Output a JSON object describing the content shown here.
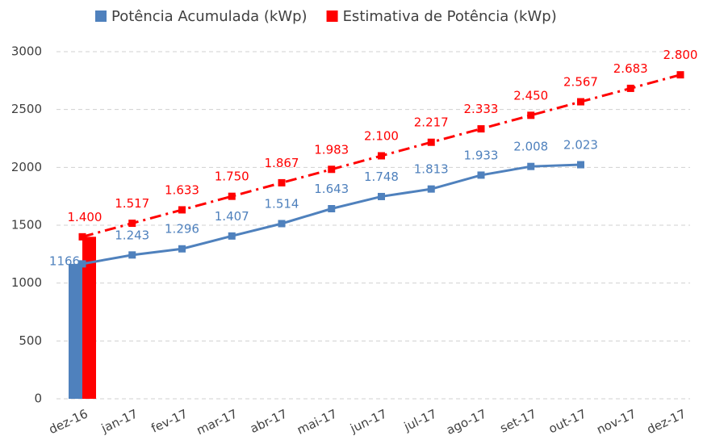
{
  "chart_data": {
    "type": "line",
    "categories": [
      "dez-16",
      "jan-17",
      "fev-17",
      "mar-17",
      "abr-17",
      "mai-17",
      "jun-17",
      "jul-17",
      "ago-17",
      "set-17",
      "out-17",
      "nov-17",
      "dez-17"
    ],
    "series": [
      {
        "name": "Potência Acumulada (kWp)",
        "color": "#4f81bd",
        "dash": false,
        "values": [
          1166,
          1243,
          1296,
          1407,
          1514,
          1643,
          1748,
          1813,
          1933,
          2008,
          2023,
          null,
          null
        ],
        "value_labels": [
          "1166",
          "1.243",
          "1.296",
          "1.407",
          "1.514",
          "1.643",
          "1.748",
          "1.813",
          "1.933",
          "2.008",
          "2.023",
          null,
          null
        ]
      },
      {
        "name": "Estimativa de Potência (kWp)",
        "color": "#ff0000",
        "dash": true,
        "values": [
          1400,
          1517,
          1633,
          1750,
          1867,
          1983,
          2100,
          2217,
          2333,
          2450,
          2567,
          2683,
          2800
        ],
        "value_labels": [
          "1.400",
          "1.517",
          "1.633",
          "1.750",
          "1.867",
          "1.983",
          "2.100",
          "2.217",
          "2.333",
          "2.450",
          "2.567",
          "2.683",
          "2.800"
        ]
      }
    ],
    "bar_index": 0,
    "ylim": [
      0,
      3000
    ],
    "yticks": [
      0,
      500,
      1000,
      1500,
      2000,
      2500,
      3000
    ],
    "grid": true,
    "legend": "top"
  }
}
